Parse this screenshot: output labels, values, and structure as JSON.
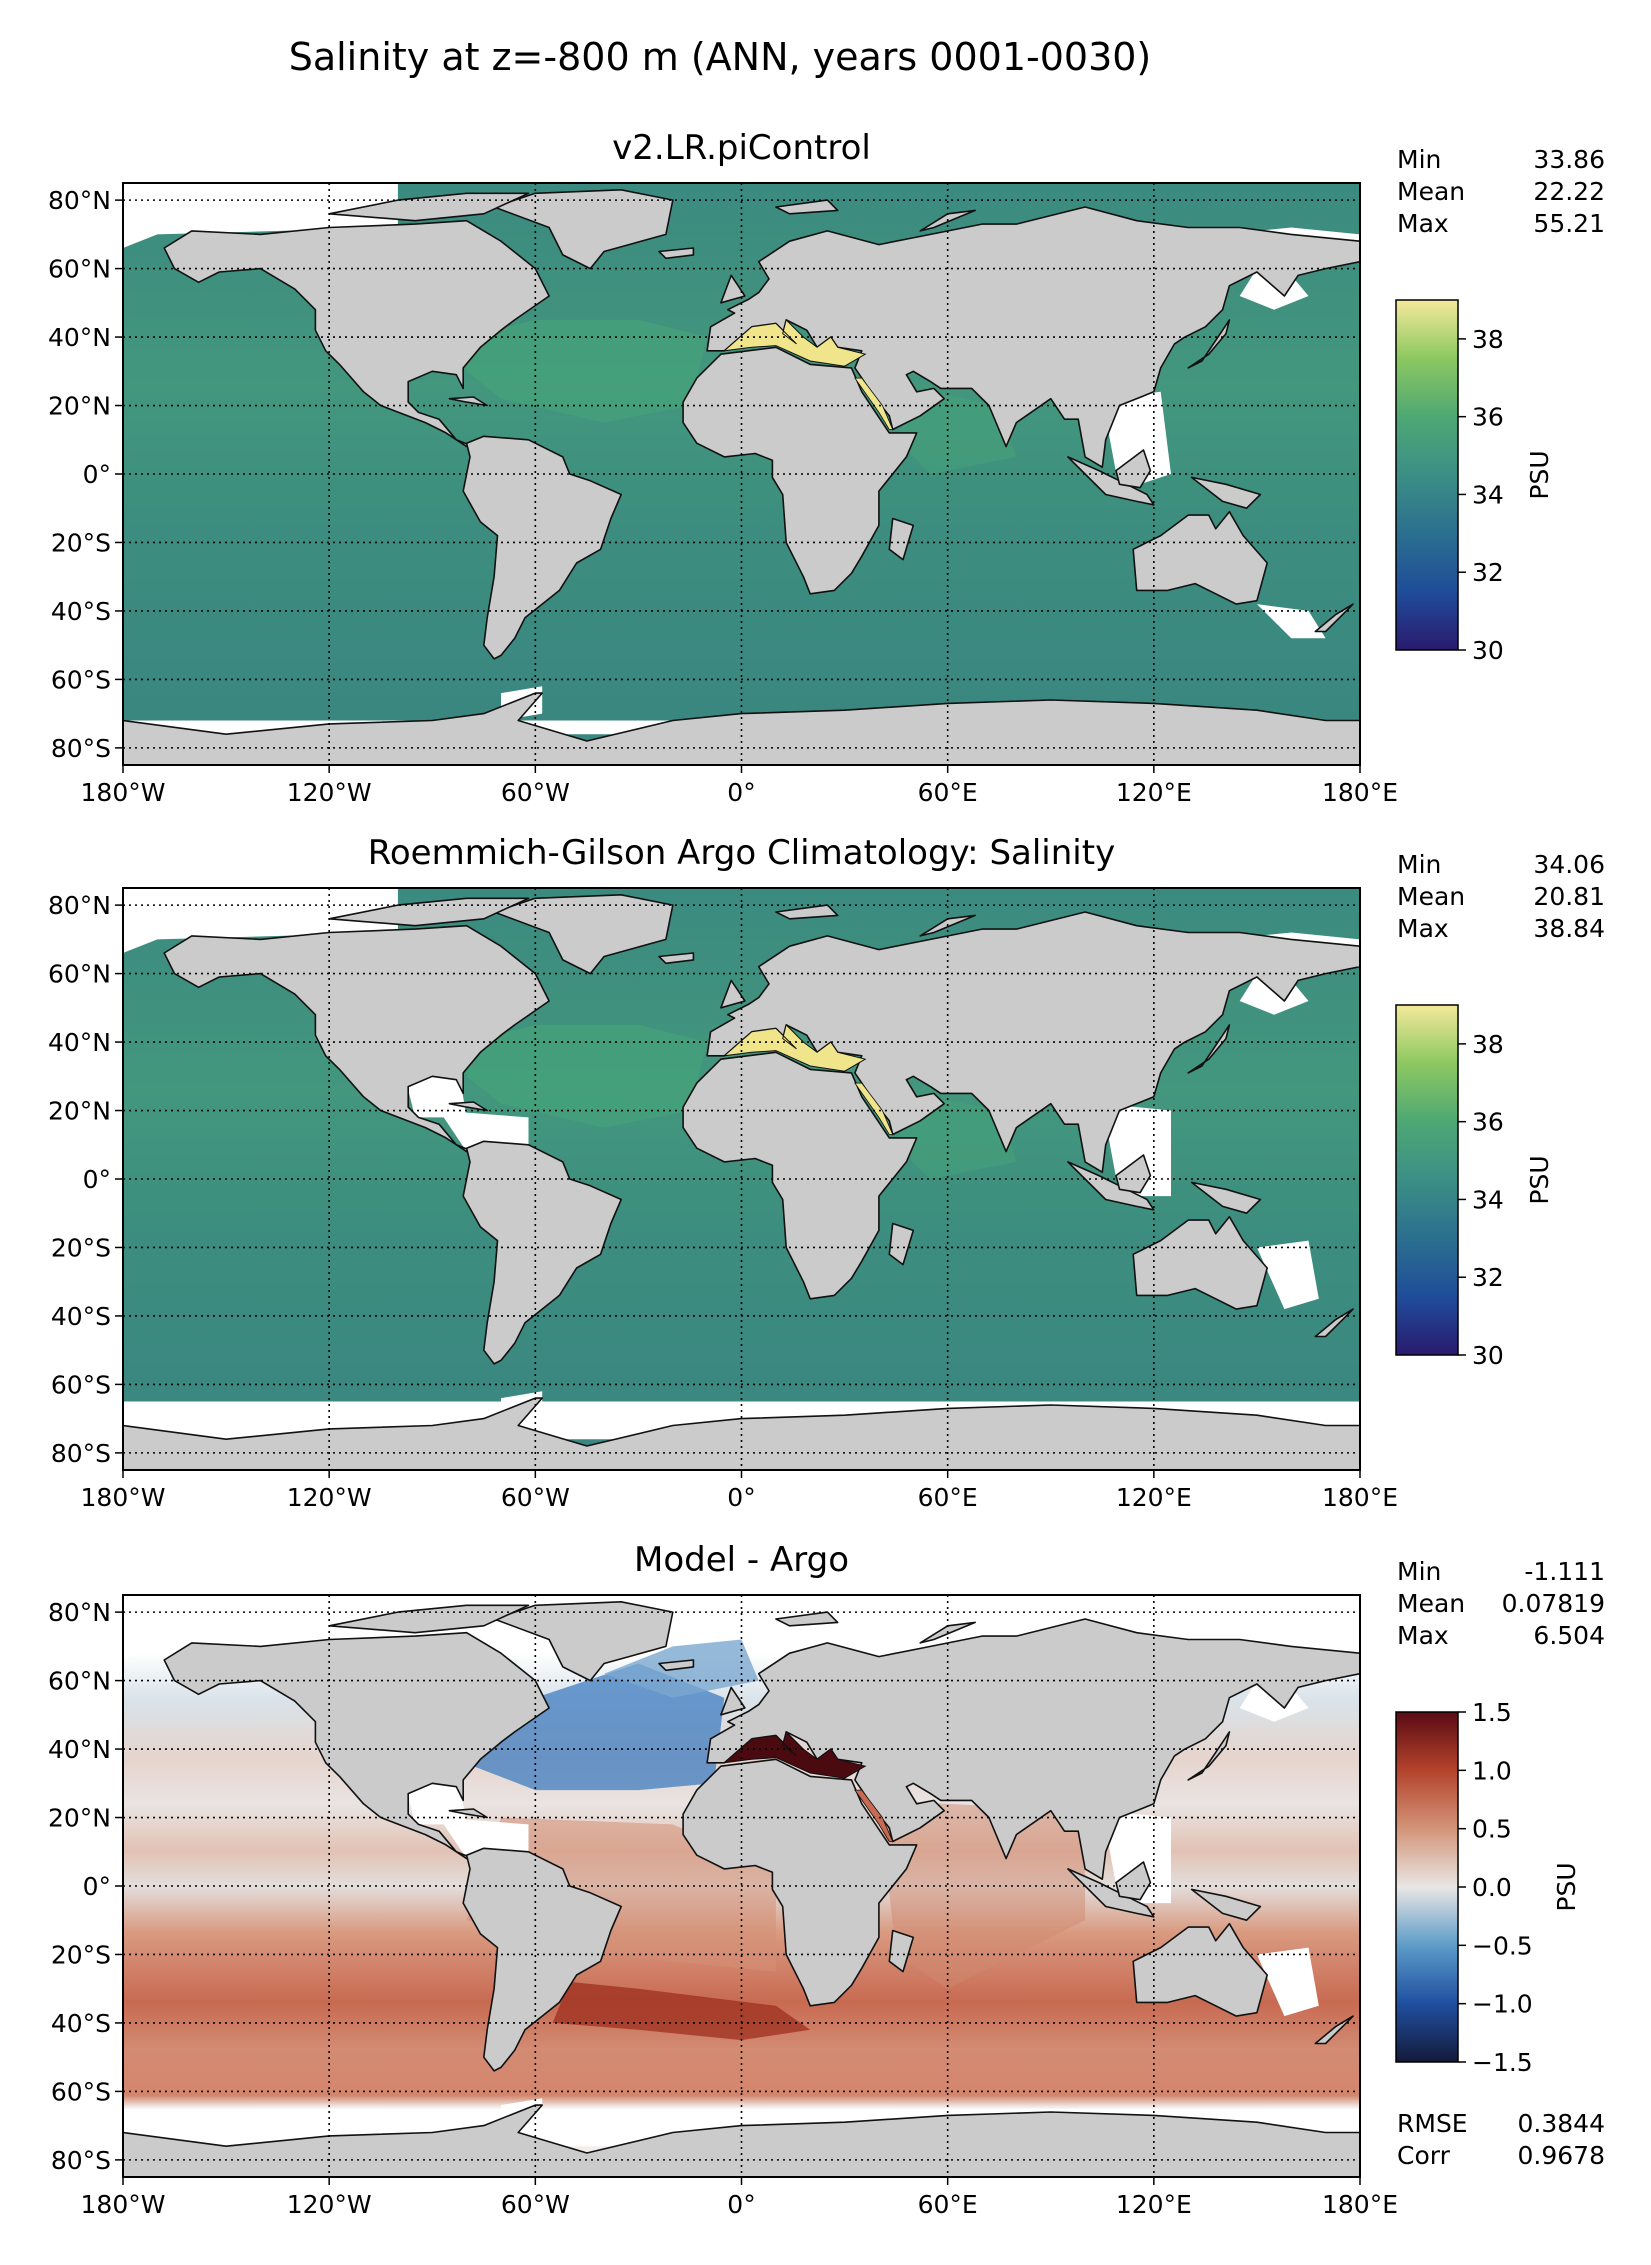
{
  "figure": {
    "title": "Salinity at z=-800 m (ANN, years 0001-0030)"
  },
  "axes_common": {
    "lat_ticks": [
      "80°N",
      "60°N",
      "40°N",
      "20°N",
      "0°",
      "20°S",
      "40°S",
      "60°S",
      "80°S"
    ],
    "lon_ticks": [
      "180°W",
      "120°W",
      "60°W",
      "0°",
      "60°E",
      "120°E",
      "180°E"
    ],
    "lat_values": [
      80,
      60,
      40,
      20,
      0,
      -20,
      -40,
      -60,
      -80
    ],
    "lon_values": [
      -180,
      -120,
      -60,
      0,
      60,
      120,
      180
    ],
    "xlim": [
      -180,
      180
    ],
    "ylim": [
      -85,
      85
    ],
    "grid": "dotted"
  },
  "colors": {
    "land": "#cbcbcb",
    "missing": "#ffffff",
    "ocean_base": "#3e8f7f",
    "ocean_salty": "#46a37a",
    "med_sea": "#f0e58a",
    "diff_red": "#c86a52",
    "diff_dark_red": "#9e2f1f",
    "diff_blue": "#3f7cc0",
    "diff_light": "#e6e0dd",
    "diff_med": "#4a0a0f"
  },
  "chart_data": [
    {
      "type": "heatmap",
      "title": "v2.LR.piControl",
      "colorbar": {
        "label": "PSU",
        "range": [
          30,
          39
        ],
        "ticks": [
          "38",
          "36",
          "34",
          "32",
          "30"
        ],
        "tick_values": [
          38,
          36,
          34,
          32,
          30
        ],
        "colors": [
          "#2a1a6e",
          "#1f4d9a",
          "#2b6f8f",
          "#3b8f86",
          "#4ea874",
          "#8cc860",
          "#f4e99a"
        ]
      },
      "stats": [
        {
          "label": "Min",
          "value": "33.86"
        },
        {
          "label": "Mean",
          "value": "22.22"
        },
        {
          "label": "Max",
          "value": "55.21"
        }
      ]
    },
    {
      "type": "heatmap",
      "title": "Roemmich-Gilson Argo Climatology: Salinity",
      "colorbar": {
        "label": "PSU",
        "range": [
          30,
          39
        ],
        "ticks": [
          "38",
          "36",
          "34",
          "32",
          "30"
        ],
        "tick_values": [
          38,
          36,
          34,
          32,
          30
        ],
        "colors": [
          "#2a1a6e",
          "#1f4d9a",
          "#2b6f8f",
          "#3b8f86",
          "#4ea874",
          "#8cc860",
          "#f4e99a"
        ]
      },
      "stats": [
        {
          "label": "Min",
          "value": "34.06"
        },
        {
          "label": "Mean",
          "value": "20.81"
        },
        {
          "label": "Max",
          "value": "38.84"
        }
      ]
    },
    {
      "type": "heatmap",
      "title": "Model - Argo",
      "colorbar": {
        "label": "PSU",
        "range": [
          -1.5,
          1.5
        ],
        "ticks": [
          "1.5",
          "1.0",
          "0.5",
          "0.0",
          "−0.5",
          "−1.0",
          "−1.5"
        ],
        "tick_values": [
          1.5,
          1.0,
          0.5,
          0.0,
          -0.5,
          -1.0,
          -1.5
        ],
        "colors": [
          "#141a3a",
          "#1f4fa0",
          "#5d9cc8",
          "#e9e6e4",
          "#d39478",
          "#b4432c",
          "#5a0b14"
        ]
      },
      "stats": [
        {
          "label": "Min",
          "value": "-1.111"
        },
        {
          "label": "Mean",
          "value": "0.07819"
        },
        {
          "label": "Max",
          "value": "6.504"
        }
      ],
      "extra_stats": [
        {
          "label": "RMSE",
          "value": "0.3844"
        },
        {
          "label": "Corr",
          "value": "0.9678"
        }
      ]
    }
  ]
}
